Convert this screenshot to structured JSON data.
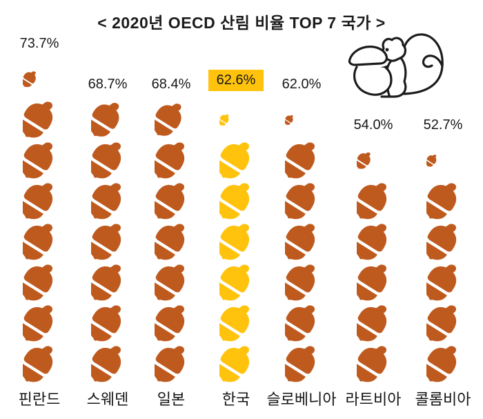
{
  "header": {
    "title": "< 2020년 OECD 산림 비율 TOP 7 국가 >"
  },
  "colors": {
    "acorn_default": "#BF5A1E",
    "acorn_highlight": "#FFC30D",
    "highlight_box_bg": "#FFC30D",
    "text": "#1a1a1a",
    "background": "#ffffff",
    "illustration_stroke": "#1c1c1c"
  },
  "icons": {
    "unit_icon": "acorn-icon",
    "decoration": "squirrel-with-acorn-illustration"
  },
  "chart_data": {
    "type": "bar",
    "subtype": "pictograph",
    "title": "< 2020년 OECD 산림 비율 TOP 7 국가 >",
    "unit_per_icon_percent": 10,
    "icon": "acorn",
    "legend_position": "none",
    "grid": false,
    "categories": [
      "핀란드",
      "스웨덴",
      "일본",
      "한국",
      "슬로베니아",
      "라트비아",
      "콜롬비아"
    ],
    "values": [
      73.7,
      68.7,
      68.4,
      62.6,
      62.0,
      54.0,
      52.7
    ],
    "value_labels": [
      "73.7%",
      "68.7%",
      "68.4%",
      "62.6%",
      "62.0%",
      "54.0%",
      "52.7%"
    ],
    "slugs": [
      "finland",
      "sweden",
      "japan",
      "korea",
      "slovenia",
      "latvia",
      "colombia"
    ],
    "highlighted_category": "한국",
    "highlighted_index": 3,
    "ylim": [
      0,
      80
    ]
  }
}
